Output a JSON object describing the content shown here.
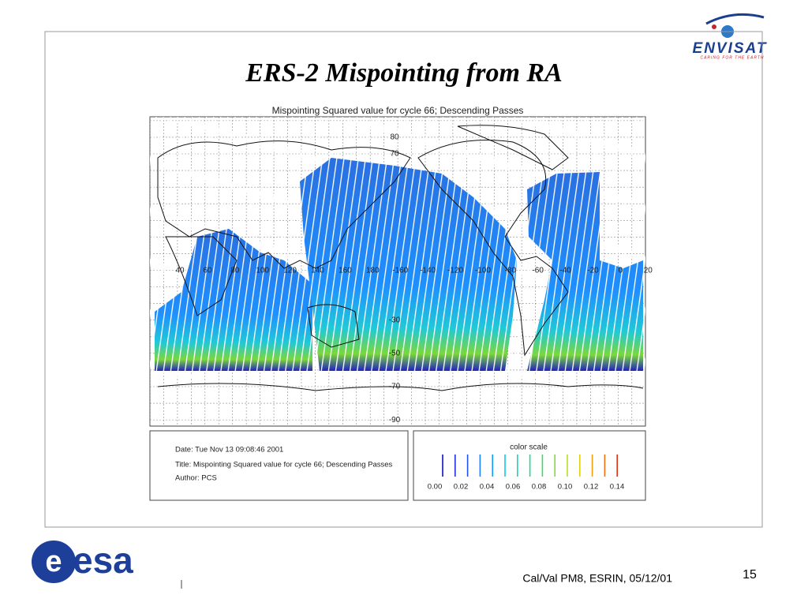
{
  "slide": {
    "title": "ERS-2 Mispointing from RA",
    "footer": "Cal/Val PM8, ESRIN,  05/12/01",
    "page_number": "15",
    "logo_left": "esa",
    "logo_right": {
      "name": "ENVISAT",
      "tagline": "CARING FOR THE EARTH"
    }
  },
  "map": {
    "title": "Mispointing Squared value for cycle 66; Descending Passes",
    "lat_labels": [
      "80",
      "70",
      "-30",
      "-50",
      "-70",
      "-90"
    ],
    "lon_labels": [
      "40",
      "60",
      "80",
      "100",
      "120",
      "140",
      "160",
      "180",
      "-160",
      "-140",
      "-120",
      "-100",
      "-80",
      "-60",
      "-40",
      "-20",
      "0",
      "20"
    ]
  },
  "info": {
    "date": "Date: Tue Nov 13 09:08:46 2001",
    "title": "Title: Mispointing Squared value for cycle 66; Descending Passes",
    "author": "Author: PCS"
  },
  "color_scale": {
    "title": "color scale",
    "labels": [
      "0.00",
      "0.02",
      "0.04",
      "0.06",
      "0.08",
      "0.10",
      "0.12",
      "0.14"
    ]
  }
}
